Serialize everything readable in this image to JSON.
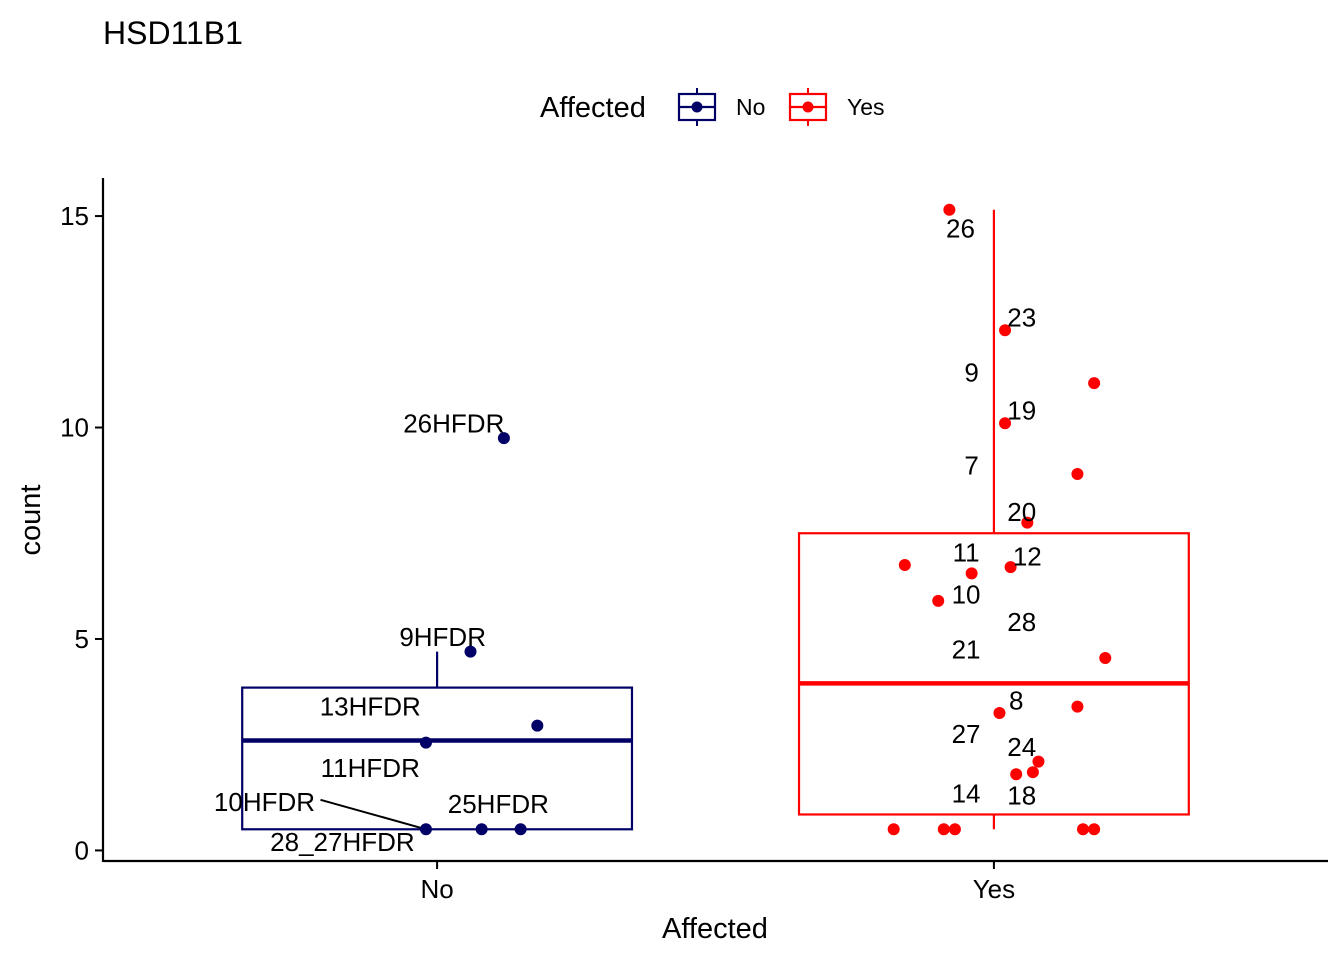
{
  "chart_data": {
    "type": "box",
    "title": "HSD11B1",
    "xlabel": "Affected",
    "ylabel": "count",
    "ylim": [
      -0.25,
      15.9
    ],
    "yticks": [
      0,
      5,
      10,
      15
    ],
    "categories": [
      "No",
      "Yes"
    ],
    "legend": {
      "title": "Affected",
      "position": "top",
      "entries": [
        {
          "label": "No",
          "color": "#000066"
        },
        {
          "label": "Yes",
          "color": "#FF0000"
        }
      ]
    },
    "boxes": [
      {
        "category": "No",
        "color": "#000066",
        "whisker_low": 0.5,
        "q1": 0.5,
        "median": 2.6,
        "q3": 3.85,
        "whisker_high": 4.7
      },
      {
        "category": "Yes",
        "color": "#FF0000",
        "whisker_low": 0.5,
        "q1": 0.85,
        "median": 3.95,
        "q3": 7.5,
        "whisker_high": 15.15
      }
    ],
    "points": [
      {
        "category": "No",
        "jitter": 0.12,
        "y": 9.75
      },
      {
        "category": "No",
        "jitter": 0.06,
        "y": 4.7
      },
      {
        "category": "No",
        "jitter": 0.18,
        "y": 2.95
      },
      {
        "category": "No",
        "jitter": -0.02,
        "y": 2.55
      },
      {
        "category": "No",
        "jitter": -0.02,
        "y": 0.5
      },
      {
        "category": "No",
        "jitter": 0.08,
        "y": 0.5
      },
      {
        "category": "No",
        "jitter": 0.15,
        "y": 0.5
      },
      {
        "category": "Yes",
        "jitter": -0.08,
        "y": 15.15
      },
      {
        "category": "Yes",
        "jitter": 0.02,
        "y": 12.3
      },
      {
        "category": "Yes",
        "jitter": 0.18,
        "y": 11.05
      },
      {
        "category": "Yes",
        "jitter": 0.02,
        "y": 10.1
      },
      {
        "category": "Yes",
        "jitter": 0.15,
        "y": 8.9
      },
      {
        "category": "Yes",
        "jitter": 0.06,
        "y": 7.75
      },
      {
        "category": "Yes",
        "jitter": -0.16,
        "y": 6.75
      },
      {
        "category": "Yes",
        "jitter": 0.03,
        "y": 6.7
      },
      {
        "category": "Yes",
        "jitter": -0.04,
        "y": 6.55
      },
      {
        "category": "Yes",
        "jitter": -0.1,
        "y": 5.9
      },
      {
        "category": "Yes",
        "jitter": 0.2,
        "y": 4.55
      },
      {
        "category": "Yes",
        "jitter": 0.15,
        "y": 3.4
      },
      {
        "category": "Yes",
        "jitter": 0.01,
        "y": 3.25
      },
      {
        "category": "Yes",
        "jitter": 0.08,
        "y": 2.1
      },
      {
        "category": "Yes",
        "jitter": 0.07,
        "y": 1.85
      },
      {
        "category": "Yes",
        "jitter": 0.04,
        "y": 1.8
      },
      {
        "category": "Yes",
        "jitter": -0.18,
        "y": 0.5
      },
      {
        "category": "Yes",
        "jitter": -0.09,
        "y": 0.5
      },
      {
        "category": "Yes",
        "jitter": -0.07,
        "y": 0.5
      },
      {
        "category": "Yes",
        "jitter": 0.16,
        "y": 0.5
      },
      {
        "category": "Yes",
        "jitter": 0.18,
        "y": 0.5
      }
    ],
    "point_labels": [
      {
        "text": "26HFDR",
        "category": "No",
        "x": 0.03,
        "y": 10.1
      },
      {
        "text": "9HFDR",
        "category": "No",
        "x": 0.01,
        "y": 5.05
      },
      {
        "text": "13HFDR",
        "category": "No",
        "x": -0.12,
        "y": 3.4
      },
      {
        "text": "11HFDR",
        "category": "No",
        "x": -0.12,
        "y": 1.95
      },
      {
        "text": "10HFDR",
        "category": "No",
        "x": -0.31,
        "y": 1.15,
        "leader_to": {
          "x": -0.02,
          "y": 0.5
        }
      },
      {
        "text": "25HFDR",
        "category": "No",
        "x": 0.11,
        "y": 1.1
      },
      {
        "text": "28_27HFDR",
        "category": "No",
        "x": -0.17,
        "y": 0.2
      },
      {
        "text": "26",
        "category": "Yes",
        "x": -0.06,
        "y": 14.7
      },
      {
        "text": "23",
        "category": "Yes",
        "x": 0.05,
        "y": 12.6
      },
      {
        "text": "9",
        "category": "Yes",
        "x": -0.04,
        "y": 11.3
      },
      {
        "text": "19",
        "category": "Yes",
        "x": 0.05,
        "y": 10.4
      },
      {
        "text": "7",
        "category": "Yes",
        "x": -0.04,
        "y": 9.1
      },
      {
        "text": "20",
        "category": "Yes",
        "x": 0.05,
        "y": 8.0
      },
      {
        "text": "11",
        "category": "Yes",
        "x": -0.05,
        "y": 7.05
      },
      {
        "text": "12",
        "category": "Yes",
        "x": 0.06,
        "y": 6.95
      },
      {
        "text": "10",
        "category": "Yes",
        "x": -0.05,
        "y": 6.05
      },
      {
        "text": "28",
        "category": "Yes",
        "x": 0.05,
        "y": 5.4
      },
      {
        "text": "21",
        "category": "Yes",
        "x": -0.05,
        "y": 4.75
      },
      {
        "text": "8",
        "category": "Yes",
        "x": 0.04,
        "y": 3.55
      },
      {
        "text": "27",
        "category": "Yes",
        "x": -0.05,
        "y": 2.75
      },
      {
        "text": "24",
        "category": "Yes",
        "x": 0.05,
        "y": 2.45
      },
      {
        "text": "14",
        "category": "Yes",
        "x": -0.05,
        "y": 1.35
      },
      {
        "text": "18",
        "category": "Yes",
        "x": 0.05,
        "y": 1.3
      }
    ]
  }
}
